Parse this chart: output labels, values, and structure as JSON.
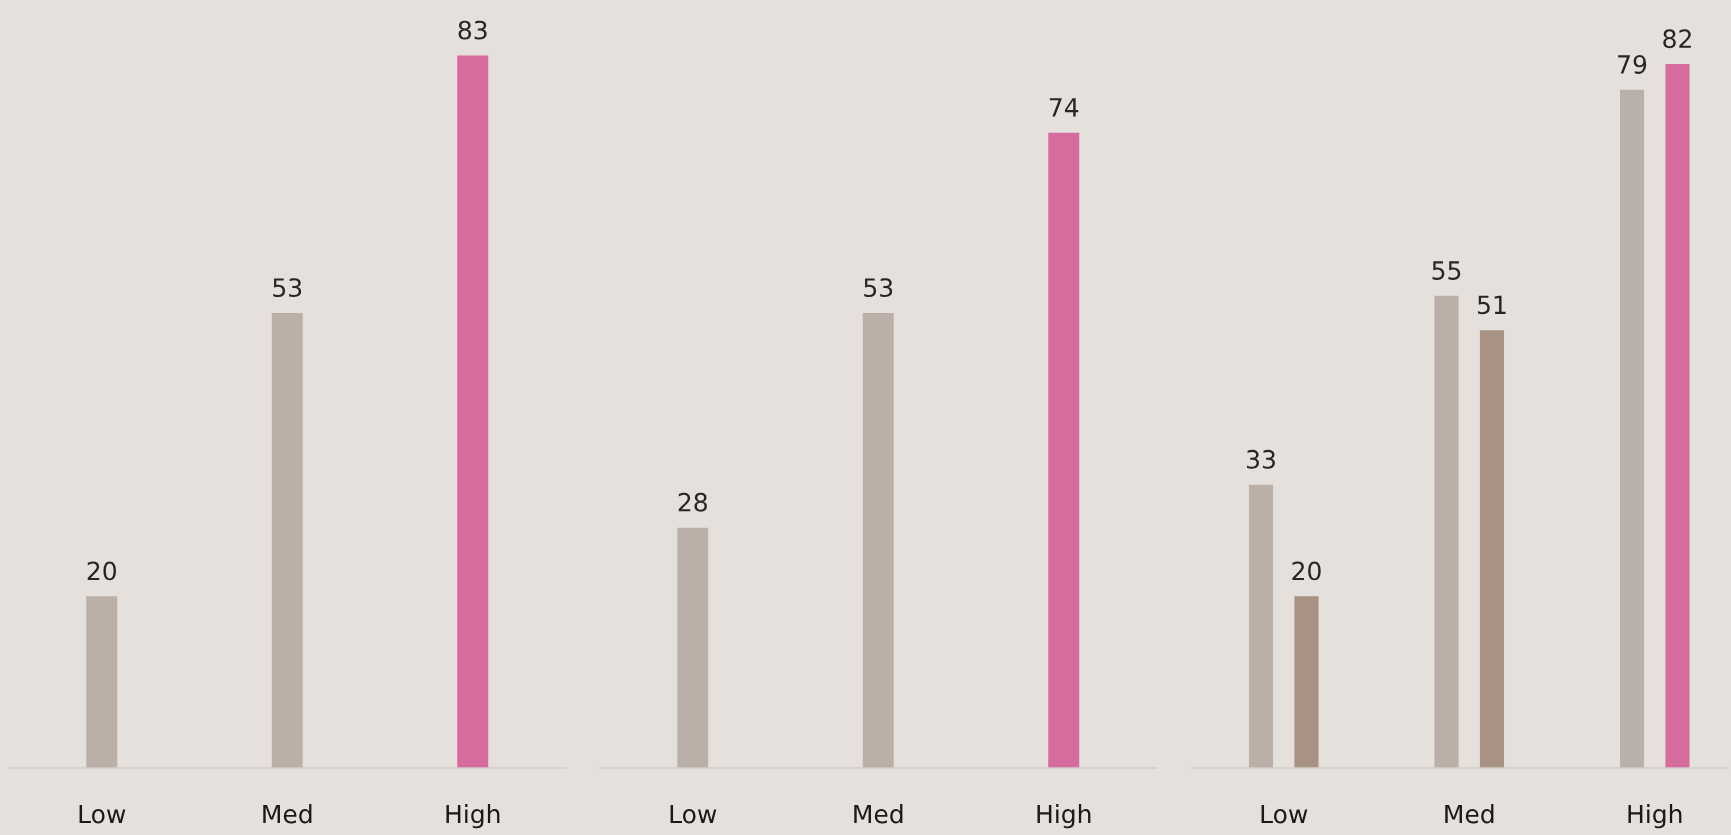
{
  "chart_data": [
    {
      "type": "bar",
      "categories": [
        "Low",
        "Med",
        "High"
      ],
      "values": [
        20,
        53,
        83
      ],
      "colors": [
        "#bab0a7",
        "#bab0a7",
        "#d66b9e"
      ],
      "ylim": [
        0,
        89
      ],
      "data_labels": true,
      "grid": false,
      "legend": false,
      "tick_labels": "x"
    },
    {
      "type": "bar",
      "categories": [
        "Low",
        "Med",
        "High"
      ],
      "values": [
        28,
        53,
        74
      ],
      "colors": [
        "#bab0a7",
        "#bab0a7",
        "#d66b9e"
      ],
      "ylim": [
        0,
        89
      ],
      "data_labels": true,
      "grid": false,
      "legend": false,
      "tick_labels": "x"
    },
    {
      "type": "bar",
      "categories": [
        "Low",
        "Med",
        "High"
      ],
      "series": [
        {
          "values": [
            33,
            55,
            79
          ],
          "colors": [
            "#bab0a7",
            "#bab0a7",
            "#bab0a7"
          ]
        },
        {
          "values": [
            20,
            51,
            82
          ],
          "colors": [
            "#a89283",
            "#a89283",
            "#d66b9e"
          ]
        }
      ],
      "ylim": [
        0,
        89
      ],
      "data_labels": true,
      "grid": false,
      "legend": false,
      "tick_labels": "x"
    }
  ]
}
